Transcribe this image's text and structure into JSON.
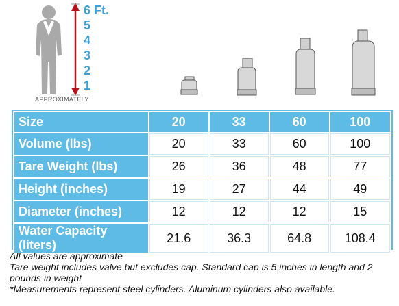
{
  "scale": {
    "label": "APPROXIMATELY",
    "marks": [
      "6 Ft.",
      "5",
      "4",
      "3",
      "2",
      "1"
    ]
  },
  "table": {
    "header": [
      "Size",
      "20",
      "33",
      "60",
      "100"
    ],
    "rows": [
      {
        "label": "Volume (lbs)",
        "values": [
          "20",
          "33",
          "60",
          "100"
        ]
      },
      {
        "label": "Tare Weight (lbs)",
        "values": [
          "26",
          "36",
          "48",
          "77"
        ]
      },
      {
        "label": "Height (inches)",
        "values": [
          "19",
          "27",
          "44",
          "49"
        ]
      },
      {
        "label": "Diameter (inches)",
        "values": [
          "12",
          "12",
          "12",
          "15"
        ]
      },
      {
        "label": "Water Capacity (liters)",
        "values": [
          "21.6",
          "36.3",
          "64.8",
          "108.4"
        ]
      }
    ]
  },
  "notes": [
    "All values are approximate",
    "Tare weight includes valve but excludes cap.  Standard cap is 5 inches in length and 2 pounds in weight",
    "*Measurements represent steel cylinders. Aluminum cylinders also available."
  ],
  "colors": {
    "header_blue": "#5dbbe5",
    "scale_blue": "#3aa0d8",
    "arrow_red": "#b5121b"
  },
  "icons": [
    "person-silhouette-icon",
    "height-arrow-icon",
    "cylinder-20-icon",
    "cylinder-33-icon",
    "cylinder-60-icon",
    "cylinder-100-icon"
  ]
}
